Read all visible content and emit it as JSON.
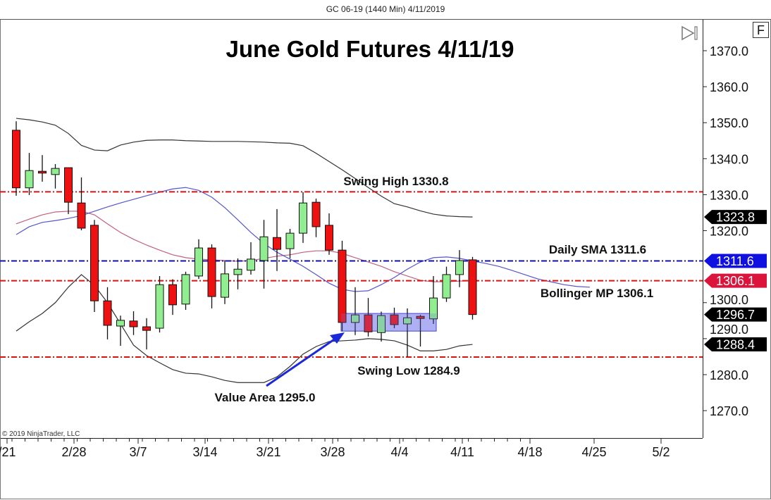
{
  "window": {
    "title": "GC 06-19 (1440 Min)  4/11/2019",
    "f_button": "F",
    "scroll_end_icon": "skip-to-end-icon",
    "copyright": "© 2019 NinjaTrader, LLC"
  },
  "chart_data": {
    "type": "candlestick",
    "title": "June Gold Futures 4/11/19",
    "ylim": [
      1265,
      1375
    ],
    "y_ticks": [
      "1370.0",
      "1360.0",
      "1350.0",
      "1340.0",
      "1330.0",
      "1320.0",
      "1300.0",
      "1290.0",
      "1280.0",
      "1270.0"
    ],
    "x_ticks": [
      "/21",
      "2/28",
      "3/7",
      "3/14",
      "3/21",
      "3/28",
      "4/4",
      "4/11",
      "4/18",
      "4/25",
      "5/2"
    ],
    "colors": {
      "up": "#90ee90",
      "down": "#ee1111",
      "upper_lower_band": "#333333",
      "middle_band": "#c06080",
      "blue_line": "#5555cc",
      "red_level": "#dd1111",
      "blue_level": "#1111aa",
      "value_area": "#8888ee"
    },
    "dates": [
      "2/21",
      "2/22",
      "2/25",
      "2/26",
      "2/27",
      "2/28",
      "3/1",
      "3/4",
      "3/5",
      "3/6",
      "3/7",
      "3/8",
      "3/11",
      "3/12",
      "3/13",
      "3/14",
      "3/15",
      "3/18",
      "3/19",
      "3/20",
      "3/21",
      "3/22",
      "3/25",
      "3/26",
      "3/27",
      "3/28",
      "3/29",
      "4/1",
      "4/2",
      "4/3",
      "4/4",
      "4/5",
      "4/8",
      "4/9",
      "4/10",
      "4/11"
    ],
    "ohlc": [
      [
        1347.9,
        1350.4,
        1329.7,
        1331.9
      ],
      [
        1331.9,
        1341.6,
        1329.9,
        1336.7
      ],
      [
        1336.5,
        1341.0,
        1333.6,
        1336.0
      ],
      [
        1335.6,
        1338.5,
        1331.7,
        1337.3
      ],
      [
        1337.5,
        1337.5,
        1324.6,
        1327.9
      ],
      [
        1327.7,
        1334.8,
        1320.1,
        1320.7
      ],
      [
        1321.5,
        1323.0,
        1297.4,
        1300.5
      ],
      [
        1300.5,
        1304.3,
        1289.8,
        1293.7
      ],
      [
        1293.5,
        1296.4,
        1288.0,
        1295.1
      ],
      [
        1294.9,
        1297.6,
        1291.0,
        1293.3
      ],
      [
        1293.3,
        1295.7,
        1287.0,
        1292.3
      ],
      [
        1292.9,
        1307.4,
        1291.7,
        1305.0
      ],
      [
        1305.0,
        1306.5,
        1296.6,
        1299.4
      ],
      [
        1299.6,
        1308.6,
        1298.0,
        1307.8
      ],
      [
        1307.4,
        1317.6,
        1306.6,
        1315.2
      ],
      [
        1315.2,
        1316.2,
        1298.4,
        1301.7
      ],
      [
        1301.5,
        1311.7,
        1299.6,
        1308.0
      ],
      [
        1307.8,
        1312.3,
        1303.7,
        1309.3
      ],
      [
        1309.0,
        1316.8,
        1307.8,
        1312.1
      ],
      [
        1311.7,
        1323.0,
        1303.9,
        1318.3
      ],
      [
        1318.1,
        1326.0,
        1308.8,
        1314.8
      ],
      [
        1315.0,
        1320.5,
        1312.3,
        1319.3
      ],
      [
        1319.3,
        1330.7,
        1316.6,
        1327.7
      ],
      [
        1327.9,
        1328.9,
        1318.2,
        1321.1
      ],
      [
        1321.5,
        1324.8,
        1313.3,
        1314.6
      ],
      [
        1314.6,
        1317.2,
        1292.1,
        1294.5
      ],
      [
        1294.5,
        1304.3,
        1291.0,
        1296.6
      ],
      [
        1296.6,
        1301.3,
        1290.6,
        1291.9
      ],
      [
        1291.7,
        1297.5,
        1289.2,
        1296.4
      ],
      [
        1296.6,
        1298.6,
        1292.9,
        1293.9
      ],
      [
        1294.1,
        1298.4,
        1284.9,
        1295.8
      ],
      [
        1296.2,
        1296.6,
        1287.8,
        1295.6
      ],
      [
        1295.5,
        1307.4,
        1294.1,
        1301.3
      ],
      [
        1301.3,
        1310.0,
        1300.2,
        1307.8
      ],
      [
        1307.8,
        1314.6,
        1304.3,
        1311.7
      ],
      [
        1311.9,
        1312.7,
        1295.3,
        1296.7
      ]
    ],
    "upper_band": [
      1351.2,
      1350.8,
      1350.2,
      1349.3,
      1347.0,
      1343.7,
      1342.4,
      1342.2,
      1343.8,
      1344.6,
      1345.1,
      1345.2,
      1345.2,
      1345.0,
      1344.9,
      1344.8,
      1344.8,
      1344.8,
      1344.7,
      1344.6,
      1344.4,
      1344.3,
      1343.6,
      1341.5,
      1339.2,
      1336.9,
      1334.5,
      1332.0,
      1329.6,
      1327.5,
      1326.6,
      1325.5,
      1324.6,
      1324.1,
      1323.9,
      1323.8
    ],
    "lower_band": [
      1292.1,
      1294.7,
      1297.0,
      1300.0,
      1304.3,
      1307.8,
      1304.8,
      1300.0,
      1294.1,
      1288.2,
      1285.3,
      1283.3,
      1281.4,
      1280.4,
      1280.2,
      1279.4,
      1278.4,
      1277.8,
      1277.8,
      1277.8,
      1279.4,
      1282.3,
      1285.7,
      1287.8,
      1289.2,
      1289.4,
      1289.6,
      1290.0,
      1289.8,
      1289.4,
      1288.2,
      1286.6,
      1286.6,
      1287.0,
      1288.0,
      1288.4
    ],
    "middle_band": [
      1321.9,
      1323.2,
      1324.4,
      1325.2,
      1325.4,
      1325.4,
      1324.4,
      1321.9,
      1319.5,
      1317.6,
      1316.0,
      1314.6,
      1313.3,
      1312.5,
      1312.1,
      1311.9,
      1311.7,
      1311.5,
      1311.7,
      1312.3,
      1312.9,
      1313.3,
      1314.0,
      1314.4,
      1314.4,
      1313.7,
      1312.5,
      1311.3,
      1310.1,
      1308.6,
      1307.4,
      1306.2,
      1305.8,
      1305.8,
      1306.0,
      1306.1
    ],
    "blue_line": [
      1318.9,
      1321.1,
      1322.3,
      1322.8,
      1323.4,
      1324.2,
      1325.4,
      1326.6,
      1327.7,
      1328.7,
      1329.7,
      1330.7,
      1331.6,
      1332.0,
      1331.2,
      1329.3,
      1326.4,
      1323.0,
      1319.5,
      1316.4,
      1314.0,
      1312.1,
      1310.1,
      1307.8,
      1305.4,
      1303.7,
      1303.1,
      1303.3,
      1305.0,
      1307.0,
      1309.3,
      1311.3,
      1312.5,
      1312.7,
      1312.3,
      1311.6,
      1310.9,
      1310.1,
      1309.0,
      1307.8,
      1306.6,
      1305.8,
      1305.0,
      1304.5,
      1304.3
    ],
    "levels": [
      {
        "label": "Swing High 1330.8",
        "value": 1330.8,
        "color": "#dd1111"
      },
      {
        "label": "Daily SMA 1311.6",
        "value": 1311.6,
        "color": "#1111aa"
      },
      {
        "label": "Bollinger MP 1306.1",
        "value": 1306.1,
        "color": "#dd1111"
      },
      {
        "label": "Swing Low 1284.9",
        "value": 1284.9,
        "color": "#dd1111"
      }
    ],
    "value_area": {
      "label": "Value Area 1295.0",
      "low": 1292.1,
      "high": 1297.0,
      "from": "3/28",
      "to": "4/8"
    },
    "price_badges": [
      {
        "value": "1323.8",
        "color": "#000000"
      },
      {
        "value": "1311.6",
        "color": "#1010e0"
      },
      {
        "value": "1306.1",
        "color": "#dc143c"
      },
      {
        "value": "1296.7",
        "color": "#000000"
      },
      {
        "value": "1288.4",
        "color": "#000000"
      }
    ]
  }
}
